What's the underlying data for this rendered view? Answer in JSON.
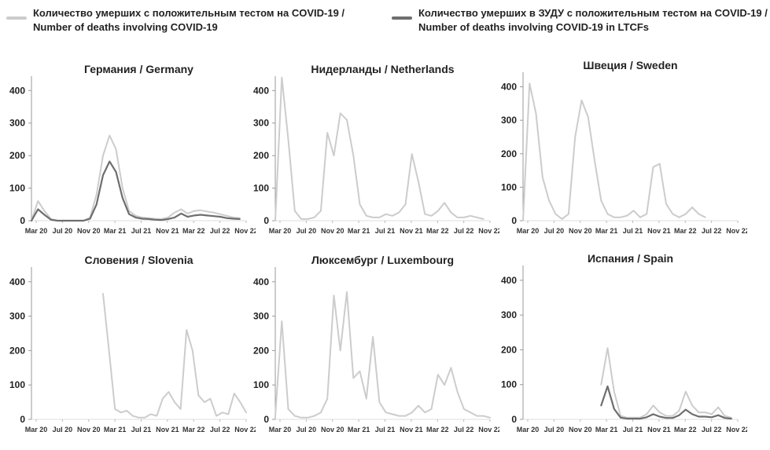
{
  "legend": {
    "all_line1": "Количество умерших с положительным тестом на COVID-19 /",
    "all_line2": "Number of deaths involving COVID-19",
    "ltcf_line1": "Количество умерших в ЗУДУ с положительным тестом на COVID-19 /",
    "ltcf_line2": "Number of deaths involving COVID-19 in LTCFs"
  },
  "colors": {
    "all": "#cccccc",
    "ltcf": "#6e6e6e",
    "axis": "#999999",
    "text": "#222222"
  },
  "chart_data": [
    {
      "type": "line",
      "title": "Германия / Germany",
      "ylim": [
        0,
        420
      ],
      "yticks": [
        0,
        100,
        200,
        300,
        400
      ],
      "xlim": [
        0,
        33
      ],
      "xtick_labels": [
        "Mar 20",
        "Jul 20",
        "Nov 20",
        "Mar 21",
        "Jul 21",
        "Nov 21",
        "Mar 22",
        "Jul 22",
        "Nov 22"
      ],
      "series": [
        {
          "values": [
            0,
            60,
            30,
            5,
            0,
            0,
            0,
            0,
            0,
            10,
            80,
            200,
            262,
            220,
            100,
            30,
            15,
            10,
            8,
            6,
            5,
            10,
            25,
            35,
            22,
            30,
            32,
            28,
            25,
            20,
            15,
            10,
            8
          ]
        },
        {
          "values": [
            0,
            35,
            18,
            3,
            0,
            0,
            0,
            0,
            0,
            6,
            50,
            140,
            182,
            150,
            70,
            20,
            10,
            6,
            5,
            3,
            2,
            5,
            10,
            22,
            12,
            16,
            18,
            16,
            14,
            12,
            8,
            6,
            5
          ]
        }
      ]
    },
    {
      "type": "line",
      "title": "Нидерланды / Netherlands",
      "ylim": [
        0,
        420
      ],
      "yticks": [
        0,
        100,
        200,
        300,
        400
      ],
      "xlim": [
        0,
        33
      ],
      "xtick_labels": [
        "Mar 20",
        "Jul 20",
        "Nov 20",
        "Mar 21",
        "Jul 21",
        "Nov 21",
        "Mar 22",
        "Jul 22",
        "Nov 22"
      ],
      "series": [
        {
          "values": [
            0,
            440,
            250,
            30,
            5,
            5,
            10,
            30,
            270,
            200,
            330,
            310,
            200,
            50,
            15,
            10,
            10,
            20,
            15,
            25,
            50,
            205,
            120,
            20,
            15,
            30,
            55,
            25,
            10,
            10,
            15,
            10,
            5
          ]
        }
      ]
    },
    {
      "type": "line",
      "title": "Швеция / Sweden",
      "ylim": [
        0,
        420
      ],
      "yticks": [
        0,
        100,
        200,
        300,
        400
      ],
      "xlim": [
        0,
        33
      ],
      "xtick_labels": [
        "Mar 20",
        "Jul 20",
        "Nov 20",
        "Mar 21",
        "Jul 21",
        "Nov 21",
        "Mar 22",
        "Jul 22",
        "Nov 22"
      ],
      "series": [
        {
          "values": [
            0,
            410,
            320,
            130,
            60,
            20,
            5,
            20,
            250,
            360,
            310,
            180,
            60,
            20,
            10,
            10,
            15,
            30,
            10,
            20,
            160,
            170,
            50,
            20,
            10,
            20,
            40,
            20,
            10
          ]
        }
      ]
    },
    {
      "type": "line",
      "title": "Словения / Slovenia",
      "ylim": [
        0,
        420
      ],
      "yticks": [
        0,
        100,
        200,
        300,
        400
      ],
      "xlim": [
        0,
        33
      ],
      "xtick_labels": [
        "Mar 20",
        "Jul 20",
        "Nov 20",
        "Mar 21",
        "Jul 21",
        "Nov 21",
        "Mar 22",
        "Jul 22",
        "Nov 22"
      ],
      "series": [
        {
          "start": 11,
          "values": [
            365,
            200,
            30,
            20,
            25,
            10,
            5,
            5,
            15,
            10,
            60,
            80,
            50,
            30,
            260,
            200,
            70,
            50,
            60,
            10,
            20,
            15,
            75,
            50,
            20
          ]
        }
      ]
    },
    {
      "type": "line",
      "title": "Люксембург / Luxembourg",
      "ylim": [
        0,
        420
      ],
      "yticks": [
        0,
        100,
        200,
        300,
        400
      ],
      "xlim": [
        0,
        33
      ],
      "xtick_labels": [
        "Mar 20",
        "Jul 20",
        "Nov 20",
        "Mar 21",
        "Jul 21",
        "Nov 21",
        "Mar 22",
        "Jul 22",
        "Nov 22"
      ],
      "series": [
        {
          "values": [
            10,
            285,
            30,
            10,
            5,
            5,
            10,
            20,
            60,
            360,
            200,
            370,
            120,
            140,
            60,
            240,
            50,
            20,
            15,
            10,
            10,
            20,
            40,
            20,
            30,
            130,
            100,
            150,
            80,
            30,
            20,
            10,
            10,
            5
          ]
        }
      ]
    },
    {
      "type": "line",
      "title": "Испания / Spain",
      "ylim": [
        0,
        420
      ],
      "yticks": [
        0,
        100,
        200,
        300,
        400
      ],
      "xlim": [
        0,
        33
      ],
      "xtick_labels": [
        "Mar 20",
        "Jul 20",
        "Nov 20",
        "Mar 21",
        "Jul 21",
        "Nov 21",
        "Mar 22",
        "Jul 22",
        "Nov 22"
      ],
      "series": [
        {
          "start": 12,
          "values": [
            100,
            205,
            80,
            10,
            5,
            5,
            5,
            15,
            40,
            20,
            10,
            10,
            25,
            80,
            40,
            20,
            20,
            15,
            35,
            10,
            5
          ]
        },
        {
          "start": 12,
          "values": [
            40,
            95,
            30,
            5,
            2,
            2,
            2,
            6,
            15,
            8,
            4,
            4,
            12,
            28,
            15,
            8,
            8,
            6,
            12,
            4,
            2
          ]
        }
      ]
    }
  ]
}
